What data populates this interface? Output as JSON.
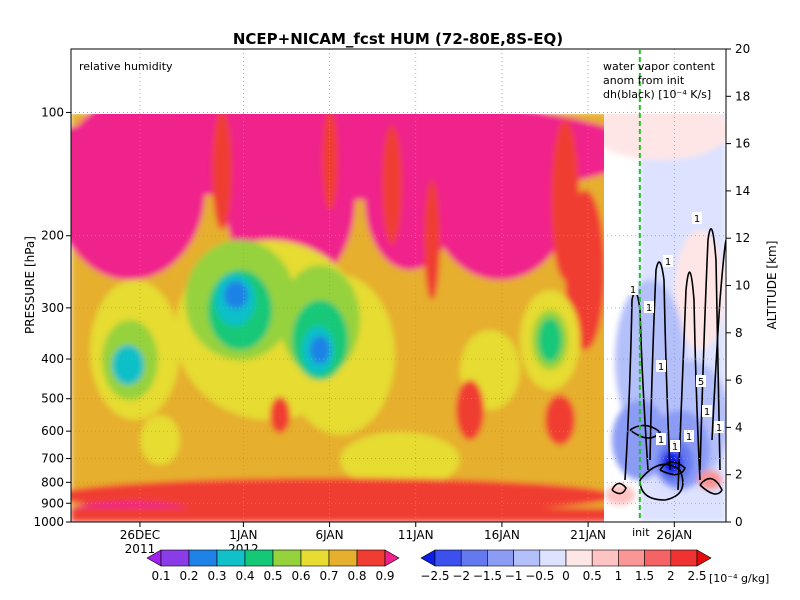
{
  "chart_data": {
    "type": "heatmap",
    "title": "NCEP+NICAM_fcst HUM (72-80E,8S-EQ)",
    "left_panel_label": "relative humidity",
    "right_panel_label_lines": [
      "water vapor content",
      "anom from init",
      "dh(black) [10⁻⁴ K/s]"
    ],
    "init_marker_label": "init",
    "y_left": {
      "label": "PRESSURE [hPa]",
      "scale": "log",
      "range": [
        1000,
        70
      ],
      "ticks": [
        100,
        200,
        300,
        400,
        500,
        600,
        700,
        800,
        900,
        1000
      ]
    },
    "y_right": {
      "label": "ALTITUDE [km]",
      "range": [
        0,
        20
      ],
      "ticks": [
        0,
        2,
        4,
        6,
        8,
        10,
        12,
        14,
        16,
        18,
        20
      ]
    },
    "x_axis": {
      "range": [
        "2011-12-22",
        "2012-01-29"
      ],
      "ticks": [
        {
          "date": "2011-12-26",
          "label": "26DEC",
          "sublabel": "2011"
        },
        {
          "date": "2012-01-01",
          "label": "1JAN",
          "sublabel": "2012"
        },
        {
          "date": "2012-01-06",
          "label": "6JAN",
          "sublabel": ""
        },
        {
          "date": "2012-01-11",
          "label": "11JAN",
          "sublabel": ""
        },
        {
          "date": "2012-01-16",
          "label": "16JAN",
          "sublabel": ""
        },
        {
          "date": "2012-01-21",
          "label": "21JAN",
          "sublabel": ""
        },
        {
          "date": "2012-01-26",
          "label": "26JAN",
          "sublabel": ""
        }
      ]
    },
    "init_date": "2012-01-24",
    "grid": true,
    "rh_colorbar": {
      "levels": [
        "0.1",
        "0.2",
        "0.3",
        "0.4",
        "0.5",
        "0.6",
        "0.7",
        "0.8",
        "0.9"
      ],
      "colors": [
        "#a020f0",
        "#8a3ce6",
        "#1e82e6",
        "#11c0c8",
        "#14c878",
        "#96d23c",
        "#e6dc32",
        "#e6af2d",
        "#f03c32",
        "#f0208c"
      ]
    },
    "anom_colorbar": {
      "levels": [
        "−2.5",
        "−2",
        "−1.5",
        "−1",
        "−0.5",
        "0",
        "0.5",
        "1",
        "1.5",
        "2",
        "2.5"
      ],
      "unit": "[10⁻⁴ g/kg]",
      "colors": [
        "#0a1ee6",
        "#3c50f0",
        "#6478f0",
        "#8c9cf5",
        "#b4c0fa",
        "#dce2ff",
        "#ffe6e6",
        "#ffc3c3",
        "#fa9696",
        "#f56464",
        "#f03232",
        "#e60a0a"
      ]
    },
    "contour_labels": [
      "1",
      "1",
      "1",
      "1",
      "1",
      "5",
      "1",
      "1",
      "1",
      "1",
      "1"
    ]
  }
}
